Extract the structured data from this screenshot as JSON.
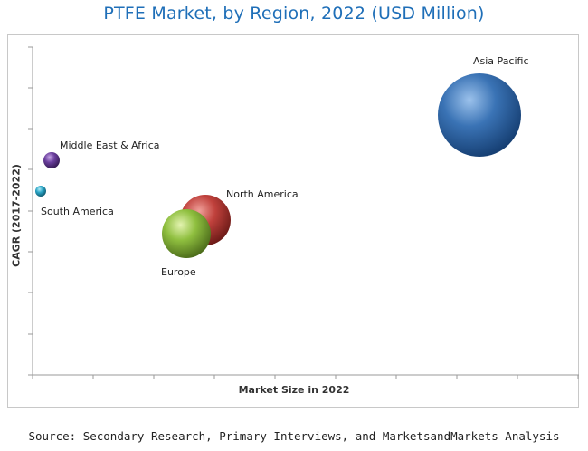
{
  "chart_data": {
    "type": "bubble",
    "title": "PTFE Market, by Region, 2022 (USD Million)",
    "xlabel": "Market Size in 2022",
    "ylabel": "CAGR (2017-2022)",
    "grid": false,
    "axis_tick_labels_shown": false,
    "series": [
      {
        "name": "Asia Pacific",
        "x": 1030,
        "y": 2.95,
        "size": 1030,
        "color": "#3a73b5"
      },
      {
        "name": "North America",
        "x": 420,
        "y": 1.7,
        "size": 350,
        "color": "#c0413c"
      },
      {
        "name": "Europe",
        "x": 380,
        "y": 1.55,
        "size": 320,
        "color": "#8fbf3f"
      },
      {
        "name": "Middle East & Africa",
        "x": 50,
        "y": 2.35,
        "size": 40,
        "color": "#6b3f9e"
      },
      {
        "name": "South America",
        "x": 20,
        "y": 2.05,
        "size": 20,
        "color": "#2aa5c6"
      }
    ]
  },
  "source_text": "Source: Secondary Research, Primary Interviews, and MarketsandMarkets Analysis"
}
